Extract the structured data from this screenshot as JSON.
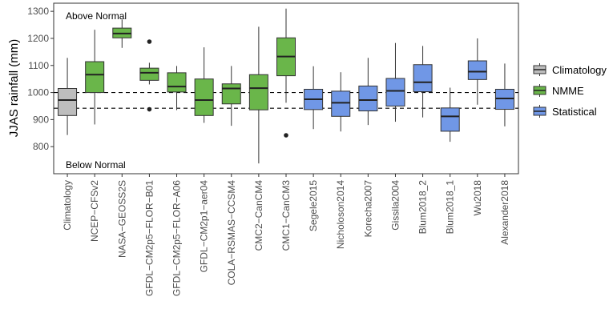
{
  "chart_data": {
    "type": "boxplot",
    "ylabel": "JJAS rainfall (mm)",
    "xlabel": "",
    "ylim": [
      700,
      1330
    ],
    "yticks": [
      800,
      900,
      1000,
      1100,
      1200,
      1300
    ],
    "reference_lines": [
      1000,
      942
    ],
    "annotations": {
      "above": "Above Normal",
      "below": "Below Normal"
    },
    "groups": [
      {
        "name": "Climatology",
        "color": "#bdbdbd"
      },
      {
        "name": "NMME",
        "color": "#6ab64a"
      },
      {
        "name": "Statistical",
        "color": "#7097e6"
      }
    ],
    "boxes": [
      {
        "label": "Climatology",
        "group": "Climatology",
        "whisker_low": 843,
        "q1": 915,
        "median": 972,
        "q3": 1015,
        "whisker_high": 1128,
        "outliers": []
      },
      {
        "label": "NCEP−CFSv2",
        "group": "NMME",
        "whisker_low": 882,
        "q1": 1000,
        "median": 1066,
        "q3": 1114,
        "whisker_high": 1232,
        "outliers": []
      },
      {
        "label": "NASA−GEOSS2S",
        "group": "NMME",
        "whisker_low": 1165,
        "q1": 1202,
        "median": 1218,
        "q3": 1238,
        "whisker_high": 1270,
        "outliers": []
      },
      {
        "label": "GFDL−CM2p5−FLOR−B01",
        "group": "NMME",
        "whisker_low": 1030,
        "q1": 1045,
        "median": 1073,
        "q3": 1090,
        "whisker_high": 1110,
        "outliers": [
          1188,
          938
        ]
      },
      {
        "label": "GFDL−CM2p5−FLOR−A06",
        "group": "NMME",
        "whisker_low": 935,
        "q1": 1002,
        "median": 1022,
        "q3": 1073,
        "whisker_high": 1098,
        "outliers": []
      },
      {
        "label": "GFDL−CM2p1−aer04",
        "group": "NMME",
        "whisker_low": 888,
        "q1": 915,
        "median": 972,
        "q3": 1050,
        "whisker_high": 1167,
        "outliers": []
      },
      {
        "label": "COLA−RSMAS−CCSM4",
        "group": "NMME",
        "whisker_low": 877,
        "q1": 958,
        "median": 1015,
        "q3": 1032,
        "whisker_high": 1098,
        "outliers": []
      },
      {
        "label": "CMC2−CanCM4",
        "group": "NMME",
        "whisker_low": 738,
        "q1": 936,
        "median": 1016,
        "q3": 1066,
        "whisker_high": 1243,
        "outliers": []
      },
      {
        "label": "CMC1−CanCM3",
        "group": "NMME",
        "whisker_low": 962,
        "q1": 1062,
        "median": 1133,
        "q3": 1202,
        "whisker_high": 1310,
        "outliers": [
          842
        ]
      },
      {
        "label": "Segele2015",
        "group": "Statistical",
        "whisker_low": 865,
        "q1": 937,
        "median": 975,
        "q3": 1012,
        "whisker_high": 1097,
        "outliers": []
      },
      {
        "label": "Nicholoson2014",
        "group": "Statistical",
        "whisker_low": 856,
        "q1": 912,
        "median": 962,
        "q3": 1005,
        "whisker_high": 1075,
        "outliers": []
      },
      {
        "label": "Korecha2007",
        "group": "Statistical",
        "whisker_low": 880,
        "q1": 932,
        "median": 972,
        "q3": 1024,
        "whisker_high": 1128,
        "outliers": []
      },
      {
        "label": "Gissila2004",
        "group": "Statistical",
        "whisker_low": 892,
        "q1": 950,
        "median": 1006,
        "q3": 1052,
        "whisker_high": 1183,
        "outliers": []
      },
      {
        "label": "Blum2018_2",
        "group": "Statistical",
        "whisker_low": 908,
        "q1": 1003,
        "median": 1038,
        "q3": 1103,
        "whisker_high": 1172,
        "outliers": []
      },
      {
        "label": "Blum2018_1",
        "group": "Statistical",
        "whisker_low": 818,
        "q1": 857,
        "median": 912,
        "q3": 943,
        "whisker_high": 1018,
        "outliers": []
      },
      {
        "label": "Wu2018",
        "group": "Statistical",
        "whisker_low": 955,
        "q1": 1048,
        "median": 1077,
        "q3": 1117,
        "whisker_high": 1200,
        "outliers": []
      },
      {
        "label": "Alexander2018",
        "group": "Statistical",
        "whisker_low": 875,
        "q1": 938,
        "median": 978,
        "q3": 1012,
        "whisker_high": 1107,
        "outliers": []
      }
    ]
  }
}
